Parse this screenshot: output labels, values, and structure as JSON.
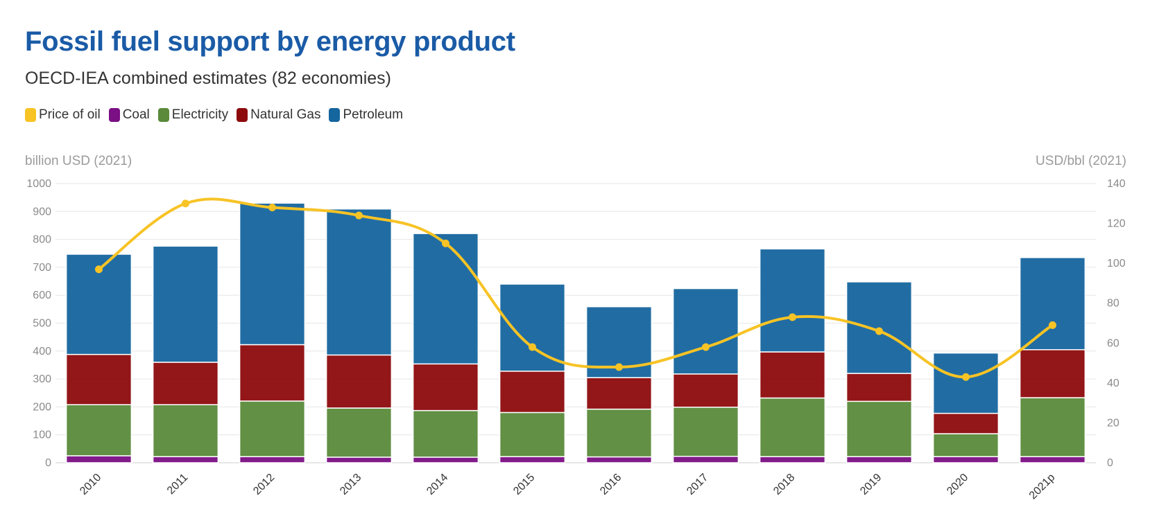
{
  "title": "Fossil fuel support by energy product",
  "subtitle": "OECD-IEA combined estimates (82 economies)",
  "legend": [
    {
      "label": "Price of oil",
      "color": "#f7c325"
    },
    {
      "label": "Coal",
      "color": "#7b0f84"
    },
    {
      "label": "Electricity",
      "color": "#5a8a3a"
    },
    {
      "label": "Natural Gas",
      "color": "#8d0a0c"
    },
    {
      "label": "Petroleum",
      "color": "#15659e"
    }
  ],
  "chart_data": {
    "type": "bar",
    "stacked": true,
    "title": "Fossil fuel support by energy product",
    "subtitle": "OECD-IEA combined estimates (82 economies)",
    "ylabel": "billion USD (2021)",
    "y2label": "USD/bbl (2021)",
    "ylim": [
      0,
      1000
    ],
    "y2lim": [
      0,
      140
    ],
    "yticks": [
      0,
      100,
      200,
      300,
      400,
      500,
      600,
      700,
      800,
      900,
      1000
    ],
    "y2ticks": [
      0,
      20,
      40,
      60,
      80,
      100,
      120,
      140
    ],
    "grid": true,
    "legend_position": "top-left",
    "categories": [
      "2010",
      "2011",
      "2012",
      "2013",
      "2014",
      "2015",
      "2016",
      "2017",
      "2018",
      "2019",
      "2020",
      "2021p"
    ],
    "series": [
      {
        "name": "Coal",
        "type": "bar",
        "color": "#7b0f84",
        "values": [
          25,
          22,
          22,
          20,
          20,
          22,
          21,
          23,
          22,
          22,
          22,
          22
        ]
      },
      {
        "name": "Electricity",
        "type": "bar",
        "color": "#5a8a3a",
        "values": [
          183,
          186,
          199,
          176,
          167,
          158,
          171,
          176,
          210,
          198,
          82,
          211
        ]
      },
      {
        "name": "Natural Gas",
        "type": "bar",
        "color": "#8d0a0c",
        "values": [
          180,
          152,
          202,
          190,
          167,
          148,
          113,
          119,
          165,
          100,
          73,
          172
        ]
      },
      {
        "name": "Petroleum",
        "type": "bar",
        "color": "#15659e",
        "values": [
          359,
          416,
          507,
          523,
          467,
          312,
          254,
          306,
          369,
          328,
          216,
          330
        ]
      },
      {
        "name": "Price of oil",
        "type": "line",
        "axis": "right",
        "color": "#f7c325",
        "values": [
          97,
          130,
          128,
          124,
          110,
          58,
          48,
          58,
          73,
          66,
          43,
          69
        ]
      }
    ]
  }
}
